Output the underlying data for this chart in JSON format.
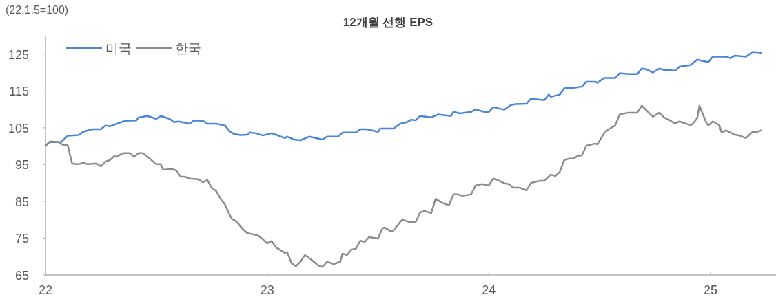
{
  "chart_data": {
    "type": "line",
    "title": "12개월 선행 EPS",
    "annotations": [
      "(22.1.5=100)"
    ],
    "xlim": [
      2022,
      2025.28
    ],
    "ylim": [
      65,
      130
    ],
    "xticks": [
      {
        "value": 2022,
        "label": "22"
      },
      {
        "value": 2023,
        "label": "23"
      },
      {
        "value": 2024,
        "label": "24"
      },
      {
        "value": 2025,
        "label": "25"
      }
    ],
    "yticks": [
      65,
      75,
      85,
      95,
      105,
      115,
      125
    ],
    "legend": "top left",
    "series": [
      {
        "name": "미국",
        "color": "#4a86d8",
        "x": [
          2022.0,
          2022.02,
          2022.07,
          2022.1,
          2022.15,
          2022.17,
          2022.21,
          2022.25,
          2022.27,
          2022.29,
          2022.36,
          2022.41,
          2022.42,
          2022.46,
          2022.5,
          2022.52,
          2022.56,
          2022.58,
          2022.6,
          2022.65,
          2022.67,
          2022.71,
          2022.73,
          2022.77,
          2022.81,
          2022.83,
          2022.85,
          2022.88,
          2022.91,
          2022.92,
          2022.95,
          2022.98,
          2023.02,
          2023.04,
          2023.08,
          2023.09,
          2023.12,
          2023.15,
          2023.19,
          2023.25,
          2023.27,
          2023.32,
          2023.34,
          2023.4,
          2023.42,
          2023.45,
          2023.5,
          2023.51,
          2023.57,
          2023.6,
          2023.63,
          2023.65,
          2023.67,
          2023.69,
          2023.74,
          2023.77,
          2023.83,
          2023.84,
          2023.87,
          2023.92,
          2023.94,
          2023.98,
          2024.0,
          2024.02,
          2024.07,
          2024.1,
          2024.12,
          2024.17,
          2024.19,
          2024.25,
          2024.27,
          2024.28,
          2024.32,
          2024.34,
          2024.37,
          2024.38,
          2024.42,
          2024.44,
          2024.48,
          2024.49,
          2024.52,
          2024.57,
          2024.59,
          2024.63,
          2024.67,
          2024.69,
          2024.71,
          2024.74,
          2024.77,
          2024.79,
          2024.84,
          2024.86,
          2024.91,
          2024.94,
          2024.99,
          2025.01,
          2025.07,
          2025.09,
          2025.11,
          2025.16,
          2025.19,
          2025.23
        ],
        "values": [
          100.1,
          101.1,
          101.1,
          102.8,
          103.0,
          103.9,
          104.6,
          104.6,
          105.6,
          105.4,
          106.9,
          107.0,
          107.8,
          108.2,
          107.4,
          108.2,
          107.4,
          106.5,
          106.7,
          106.1,
          107.0,
          106.9,
          106.1,
          106.1,
          105.6,
          104.1,
          103.3,
          103.0,
          103.1,
          103.7,
          103.5,
          102.9,
          103.5,
          103.1,
          102.2,
          102.6,
          101.8,
          101.6,
          102.6,
          101.8,
          102.6,
          102.6,
          103.7,
          103.7,
          104.6,
          104.6,
          103.9,
          104.8,
          104.8,
          106.1,
          106.5,
          107.2,
          107.0,
          108.2,
          107.8,
          108.6,
          108.2,
          109.3,
          108.9,
          109.3,
          110.0,
          109.3,
          109.3,
          110.6,
          109.9,
          111.2,
          111.4,
          111.5,
          112.9,
          112.5,
          114.0,
          113.4,
          114.0,
          115.7,
          115.8,
          115.8,
          116.2,
          117.5,
          117.5,
          117.2,
          118.5,
          118.5,
          119.8,
          119.6,
          119.6,
          121.1,
          120.9,
          120.0,
          121.1,
          120.7,
          120.5,
          121.6,
          122.0,
          123.5,
          122.8,
          124.3,
          124.3,
          123.9,
          124.6,
          124.3,
          125.6,
          125.4
        ]
      },
      {
        "name": "한국",
        "color": "#8c8c8c",
        "x": [
          2022.0,
          2022.02,
          2022.06,
          2022.08,
          2022.1,
          2022.12,
          2022.14,
          2022.15,
          2022.17,
          2022.19,
          2022.23,
          2022.25,
          2022.27,
          2022.29,
          2022.31,
          2022.32,
          2022.35,
          2022.38,
          2022.4,
          2022.42,
          2022.44,
          2022.5,
          2022.52,
          2022.53,
          2022.57,
          2022.59,
          2022.61,
          2022.63,
          2022.65,
          2022.69,
          2022.71,
          2022.73,
          2022.75,
          2022.77,
          2022.79,
          2022.81,
          2022.83,
          2022.84,
          2022.86,
          2022.89,
          2022.91,
          2022.94,
          2022.96,
          2022.98,
          2023.0,
          2023.02,
          2023.04,
          2023.08,
          2023.09,
          2023.11,
          2023.13,
          2023.15,
          2023.17,
          2023.2,
          2023.23,
          2023.25,
          2023.27,
          2023.3,
          2023.33,
          2023.34,
          2023.36,
          2023.38,
          2023.4,
          2023.42,
          2023.44,
          2023.46,
          2023.5,
          2023.52,
          2023.53,
          2023.56,
          2023.57,
          2023.6,
          2023.61,
          2023.64,
          2023.67,
          2023.69,
          2023.71,
          2023.74,
          2023.76,
          2023.79,
          2023.82,
          2023.84,
          2023.86,
          2023.88,
          2023.92,
          2023.94,
          2023.97,
          2024.0,
          2024.02,
          2024.04,
          2024.07,
          2024.09,
          2024.11,
          2024.14,
          2024.17,
          2024.19,
          2024.23,
          2024.25,
          2024.28,
          2024.3,
          2024.32,
          2024.34,
          2024.36,
          2024.38,
          2024.4,
          2024.42,
          2024.44,
          2024.48,
          2024.49,
          2024.52,
          2024.54,
          2024.57,
          2024.59,
          2024.63,
          2024.67,
          2024.69,
          2024.74,
          2024.77,
          2024.79,
          2024.82,
          2024.84,
          2024.86,
          2024.91,
          2024.92,
          2024.94,
          2024.95,
          2024.98,
          2024.99,
          2025.01,
          2025.04,
          2025.05,
          2025.07,
          2025.11,
          2025.13,
          2025.16,
          2025.19,
          2025.21,
          2025.23
        ],
        "values": [
          100.1,
          101.3,
          101.1,
          100.3,
          100.3,
          95.3,
          95.1,
          95.1,
          95.5,
          95.1,
          95.3,
          94.5,
          95.8,
          96.2,
          97.3,
          97.1,
          98.1,
          98.1,
          97.1,
          98.1,
          98.1,
          95.1,
          95.1,
          93.6,
          93.8,
          93.4,
          91.7,
          91.7,
          91.2,
          91.0,
          90.2,
          90.8,
          88.7,
          87.8,
          85.7,
          84.1,
          81.4,
          80.3,
          79.6,
          77.5,
          76.4,
          76.0,
          75.7,
          74.7,
          73.6,
          74.2,
          72.5,
          71.0,
          71.2,
          68.2,
          67.4,
          68.6,
          70.4,
          69.1,
          67.6,
          67.2,
          68.6,
          68.0,
          68.6,
          70.8,
          70.4,
          71.9,
          72.1,
          74.3,
          74.0,
          75.3,
          74.9,
          77.7,
          77.9,
          76.8,
          77.1,
          79.4,
          80.0,
          79.4,
          79.4,
          82.0,
          82.4,
          81.8,
          85.7,
          84.6,
          83.9,
          86.9,
          86.9,
          86.5,
          86.9,
          89.3,
          89.7,
          89.3,
          91.2,
          90.8,
          89.9,
          89.7,
          88.7,
          88.7,
          88.0,
          90.0,
          90.6,
          90.6,
          92.3,
          91.9,
          93.0,
          96.2,
          96.6,
          96.6,
          97.3,
          97.5,
          100.1,
          100.7,
          100.5,
          103.5,
          104.6,
          105.6,
          108.6,
          109.1,
          109.1,
          111.0,
          108.0,
          109.1,
          107.8,
          106.9,
          106.1,
          106.7,
          105.7,
          106.1,
          107.6,
          111.0,
          106.5,
          105.6,
          106.7,
          105.7,
          103.7,
          104.3,
          103.1,
          102.9,
          102.2,
          103.9,
          103.9,
          104.3
        ]
      }
    ]
  }
}
